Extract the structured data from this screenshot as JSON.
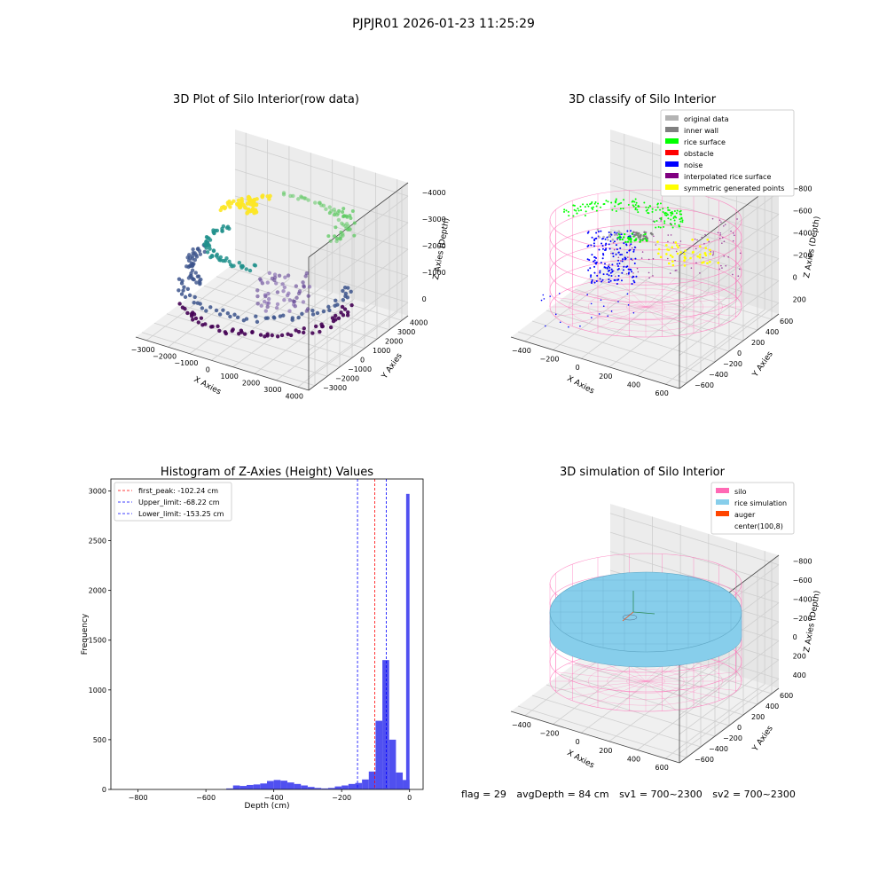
{
  "figure": {
    "suptitle": "PJPJR01 2026-01-23 11:25:29"
  },
  "footer": {
    "flag": "flag = 29",
    "avg_depth": "avgDepth = 84 cm",
    "sv1": "sv1 = 700~2300",
    "sv2": "sv2 = 700~2300"
  },
  "chart_data": [
    {
      "type": "scatter",
      "projection": "3d",
      "title": "3D Plot of Silo Interior(row data)",
      "xlabel": "X Axies",
      "ylabel": "Y Axies",
      "zlabel": "Z Axies (Depth)",
      "xticks": [
        "−3000",
        "−2000",
        "−1000",
        "0",
        "1000",
        "2000",
        "3000",
        "4000"
      ],
      "yticks": [
        "−3000",
        "−2000",
        "−1000",
        "0",
        "1000",
        "2000",
        "3000",
        "4000"
      ],
      "zticks": [
        "0",
        "−1000",
        "−2000",
        "−3000",
        "−4000"
      ],
      "xlim": [
        -3300,
        4300
      ],
      "ylim": [
        -3300,
        4300
      ],
      "zlim": [
        -4500,
        0
      ],
      "colormap": "viridis",
      "colormap_colors": [
        "#440154",
        "#3b528b",
        "#21918c",
        "#5ec962",
        "#fde725"
      ],
      "grid": true
    },
    {
      "type": "scatter",
      "projection": "3d",
      "title": "3D classify of Silo Interior",
      "xlabel": "X Axies",
      "ylabel": "Y Axies",
      "zlabel": "Z Axies (Depth)",
      "xticks": [
        "−400",
        "−200",
        "0",
        "200",
        "400",
        "600"
      ],
      "yticks": [
        "−600",
        "−400",
        "−200",
        "0",
        "200",
        "400",
        "600"
      ],
      "zticks": [
        "200",
        "0",
        "−200",
        "−400",
        "−600",
        "−800"
      ],
      "xlim": [
        -500,
        700
      ],
      "ylim": [
        -650,
        700
      ],
      "zlim": [
        -900,
        300
      ],
      "legend_location": "upper right",
      "legend": [
        {
          "label": "original data",
          "color": "#b3b3b3"
        },
        {
          "label": "inner wall",
          "color": "#808080"
        },
        {
          "label": "rice surface",
          "color": "#00ff00"
        },
        {
          "label": "obstacle",
          "color": "#ff0000"
        },
        {
          "label": "noise",
          "color": "#0000ff"
        },
        {
          "label": "interpolated rice surface",
          "color": "#800080"
        },
        {
          "label": "symmetric generated points",
          "color": "#ffff00"
        }
      ],
      "wireframe_color": "#ff69b4",
      "grid": true
    },
    {
      "type": "bar",
      "title": "Histogram of Z-Axies (Height) Values",
      "xlabel": "Depth (cm)",
      "ylabel": "Frequency",
      "xlim": [
        -880,
        40
      ],
      "ylim": [
        0,
        3120
      ],
      "xticks": [
        "−800",
        "−600",
        "−400",
        "−200",
        "0"
      ],
      "xtick_values": [
        -800,
        -600,
        -400,
        -200,
        0
      ],
      "yticks": [
        "0",
        "500",
        "1000",
        "1500",
        "2000",
        "2500",
        "3000"
      ],
      "ytick_values": [
        0,
        500,
        1000,
        1500,
        2000,
        2500,
        3000
      ],
      "bar_color": "#5050f0",
      "bin_width": 20,
      "bin_starts": [
        -540,
        -520,
        -500,
        -480,
        -460,
        -440,
        -420,
        -400,
        -380,
        -360,
        -340,
        -320,
        -300,
        -280,
        -260,
        -240,
        -220,
        -200,
        -180,
        -160,
        -140,
        -120,
        -100,
        -80,
        -60,
        -40,
        -20
      ],
      "values": [
        10,
        40,
        35,
        45,
        50,
        60,
        85,
        95,
        88,
        70,
        55,
        40,
        25,
        15,
        10,
        15,
        30,
        40,
        55,
        65,
        100,
        180,
        690,
        1300,
        500,
        170,
        95
      ],
      "extra_bar": {
        "start": -10,
        "width": 10,
        "value": 2970
      },
      "lines": [
        {
          "label": "first_peak: -102.24 cm",
          "x": -102.24,
          "color": "#ff0000"
        },
        {
          "label": "Upper_limit: -68.22 cm",
          "x": -68.22,
          "color": "#0000ff"
        },
        {
          "label": "Lower_limit: -153.25 cm",
          "x": -153.25,
          "color": "#0000ff"
        }
      ],
      "legend_location": "upper left"
    },
    {
      "type": "surface",
      "projection": "3d",
      "title": "3D simulation of Silo Interior",
      "xlabel": "X Axies",
      "ylabel": "Y Axies",
      "zlabel": "Z Axies (Depth)",
      "xticks": [
        "−400",
        "−200",
        "0",
        "200",
        "400",
        "600"
      ],
      "yticks": [
        "−600",
        "−400",
        "−200",
        "0",
        "200",
        "400",
        "600"
      ],
      "zticks": [
        "400",
        "200",
        "0",
        "−200",
        "−400",
        "−600",
        "−800"
      ],
      "xlim": [
        -500,
        700
      ],
      "ylim": [
        -650,
        700
      ],
      "zlim": [
        -900,
        450
      ],
      "legend_location": "upper right",
      "legend": [
        {
          "label": "silo",
          "color": "#ff69b4"
        },
        {
          "label": "rice simulation",
          "color": "#87ceeb"
        },
        {
          "label": "auger",
          "color": "#ff4500"
        },
        {
          "label": "center(100,8)",
          "color": "#ffffff"
        }
      ],
      "grid": true
    }
  ]
}
